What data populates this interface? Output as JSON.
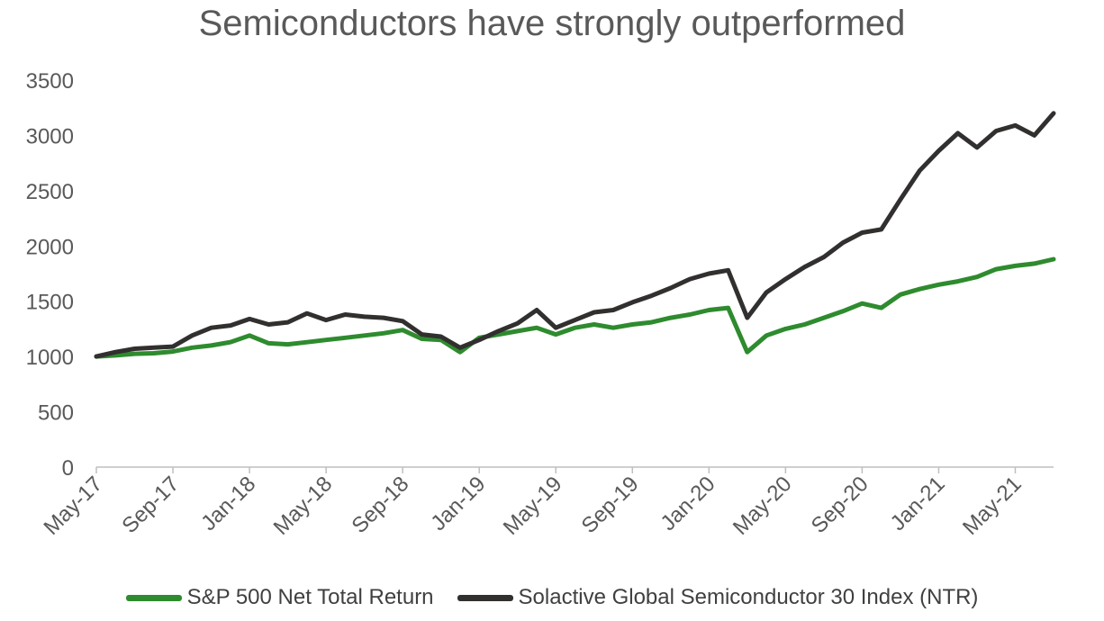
{
  "chart_data": {
    "type": "line",
    "title": "Semiconductors have strongly outperformed",
    "xlabel": "",
    "ylabel": "",
    "ylim": [
      0,
      3500
    ],
    "yticks": [
      "0",
      "500",
      "1000",
      "1500",
      "2000",
      "2500",
      "3000",
      "3500"
    ],
    "x_tick_labels": [
      "May-17",
      "Sep-17",
      "Jan-18",
      "May-18",
      "Sep-18",
      "Jan-19",
      "May-19",
      "Sep-19",
      "Jan-20",
      "May-20",
      "Sep-20",
      "Jan-21",
      "May-21"
    ],
    "x": [
      "May-17",
      "Jun-17",
      "Jul-17",
      "Aug-17",
      "Sep-17",
      "Oct-17",
      "Nov-17",
      "Dec-17",
      "Jan-18",
      "Feb-18",
      "Mar-18",
      "Apr-18",
      "May-18",
      "Jun-18",
      "Jul-18",
      "Aug-18",
      "Sep-18",
      "Oct-18",
      "Nov-18",
      "Dec-18",
      "Jan-19",
      "Feb-19",
      "Mar-19",
      "Apr-19",
      "May-19",
      "Jun-19",
      "Jul-19",
      "Aug-19",
      "Sep-19",
      "Oct-19",
      "Nov-19",
      "Dec-19",
      "Jan-20",
      "Feb-20",
      "Mar-20",
      "Apr-20",
      "May-20",
      "Jun-20",
      "Jul-20",
      "Aug-20",
      "Sep-20",
      "Oct-20",
      "Nov-20",
      "Dec-20",
      "Jan-21",
      "Feb-21",
      "Mar-21",
      "Apr-21",
      "May-21",
      "Jun-21",
      "Jul-21"
    ],
    "grid": false,
    "legend_position": "bottom",
    "series": [
      {
        "name": "S&P 500 Net Total Return",
        "color": "#2e8b2e",
        "values": [
          1000,
          1010,
          1025,
          1030,
          1045,
          1080,
          1100,
          1130,
          1190,
          1120,
          1110,
          1130,
          1150,
          1170,
          1190,
          1210,
          1240,
          1160,
          1150,
          1040,
          1170,
          1200,
          1230,
          1260,
          1200,
          1260,
          1290,
          1260,
          1290,
          1310,
          1350,
          1380,
          1420,
          1440,
          1040,
          1190,
          1250,
          1290,
          1350,
          1410,
          1480,
          1440,
          1560,
          1610,
          1650,
          1680,
          1720,
          1790,
          1820,
          1840,
          1880
        ]
      },
      {
        "name": "Solactive Global Semiconductor 30 Index (NTR)",
        "color": "#322f2f",
        "values": [
          1000,
          1040,
          1070,
          1080,
          1090,
          1190,
          1260,
          1280,
          1340,
          1290,
          1310,
          1390,
          1330,
          1380,
          1360,
          1350,
          1320,
          1200,
          1180,
          1080,
          1150,
          1230,
          1300,
          1420,
          1260,
          1330,
          1400,
          1420,
          1490,
          1550,
          1620,
          1700,
          1750,
          1780,
          1350,
          1580,
          1700,
          1810,
          1900,
          2030,
          2120,
          2150,
          2420,
          2680,
          2860,
          3020,
          2890,
          3040,
          3090,
          3000,
          3200
        ]
      }
    ]
  }
}
